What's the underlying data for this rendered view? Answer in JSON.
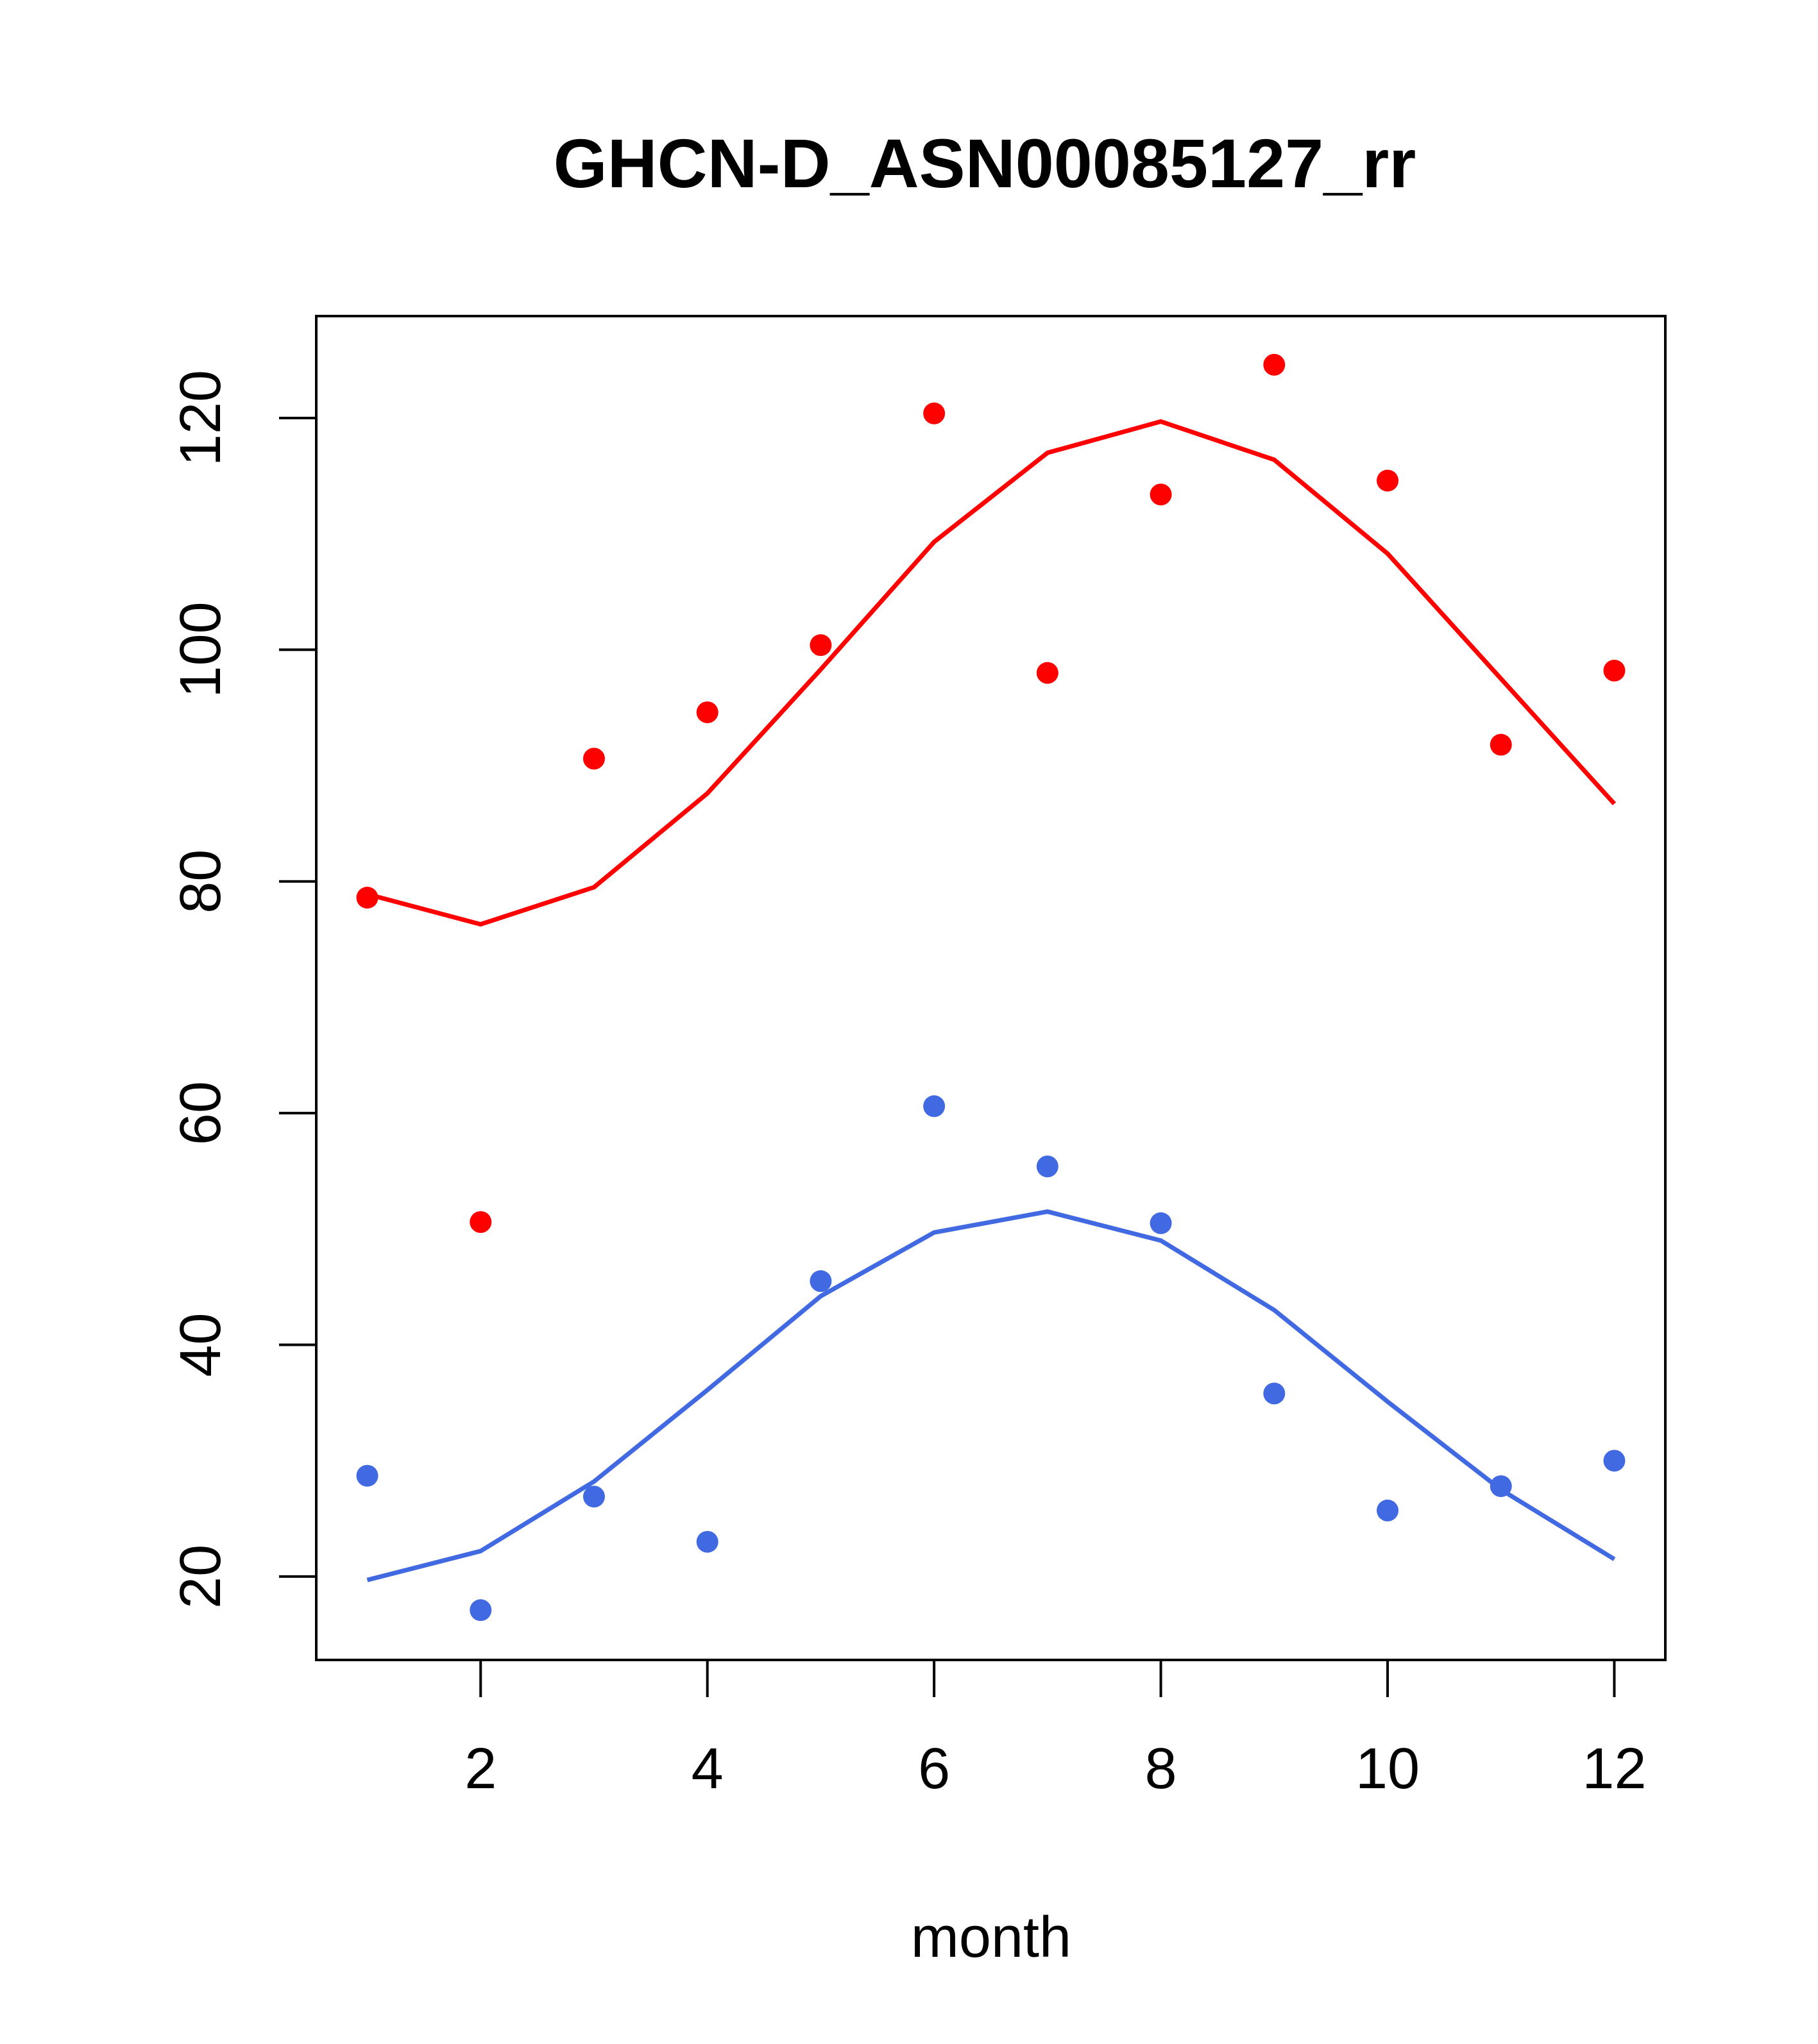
{
  "chart_data": {
    "type": "scatter",
    "title": "GHCN-D_ASN00085127_rr",
    "xlabel": "month",
    "ylabel": "",
    "xlim": [
      0.55,
      12.45
    ],
    "ylim": [
      12.8,
      128.8
    ],
    "xticks": [
      2,
      4,
      6,
      8,
      10,
      12
    ],
    "yticks": [
      20,
      40,
      60,
      80,
      100,
      120
    ],
    "grid": false,
    "series": [
      {
        "color": "#ff0000",
        "x": [
          1,
          2,
          3,
          4,
          5,
          6,
          7,
          8,
          9,
          10,
          11,
          12
        ],
        "points": [
          78.6,
          50.6,
          90.6,
          94.6,
          100.4,
          120.4,
          98.0,
          113.4,
          124.6,
          114.6,
          91.8,
          98.2
        ],
        "line": [
          78.9,
          76.3,
          79.5,
          87.6,
          98.3,
          109.3,
          117.0,
          119.7,
          116.4,
          108.3,
          97.5,
          86.7
        ]
      },
      {
        "color": "#4169e1",
        "x": [
          1,
          2,
          3,
          4,
          5,
          6,
          7,
          8,
          9,
          10,
          11,
          12
        ],
        "points": [
          28.7,
          17.1,
          26.9,
          23.0,
          45.5,
          60.6,
          55.4,
          50.5,
          35.8,
          25.7,
          27.8,
          30.0
        ],
        "line": [
          19.7,
          22.2,
          28.2,
          36.1,
          44.2,
          49.7,
          51.5,
          49.0,
          43.0,
          35.1,
          27.5,
          21.5
        ]
      }
    ]
  }
}
